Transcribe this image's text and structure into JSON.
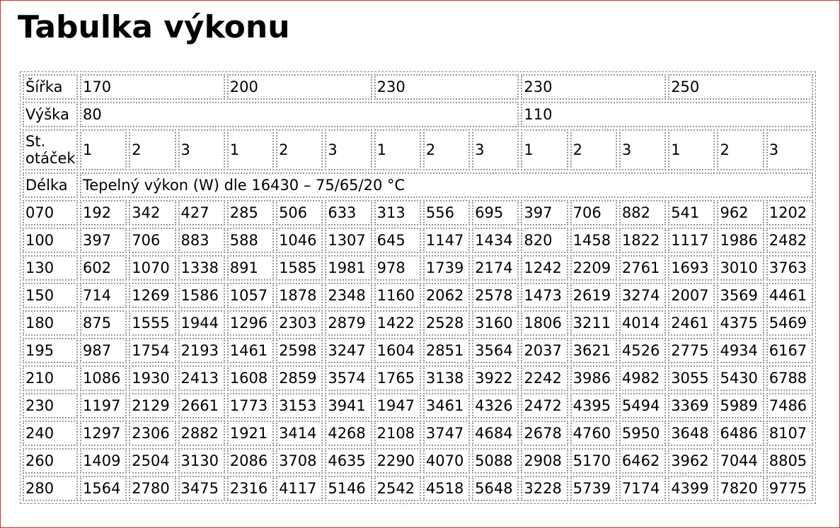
{
  "header": {
    "title": "Tabulka výkonu"
  },
  "table": {
    "rows": [
      [
        "Šířka",
        "170",
        "200",
        "230",
        "230",
        "250"
      ],
      [
        "Výška",
        "80",
        "110"
      ],
      [
        "St. otáček",
        1,
        2,
        3,
        1,
        2,
        3,
        1,
        2,
        3,
        1,
        2,
        3,
        1,
        2,
        3
      ],
      [
        "Délka",
        "Tepelný výkon (W) dle 16430 – 75/65/20 °C"
      ],
      [
        "070",
        192,
        342,
        427,
        285,
        506,
        633,
        313,
        556,
        695,
        397,
        706,
        882,
        541,
        962,
        1202
      ],
      [
        "100",
        397,
        706,
        883,
        588,
        1046,
        1307,
        645,
        1147,
        1434,
        820,
        1458,
        1822,
        1117,
        1986,
        2482
      ],
      [
        "130",
        602,
        1070,
        1338,
        891,
        1585,
        1981,
        978,
        1739,
        2174,
        1242,
        2209,
        2761,
        1693,
        3010,
        3763
      ],
      [
        "150",
        714,
        1269,
        1586,
        1057,
        1878,
        2348,
        1160,
        2062,
        2578,
        1473,
        2619,
        3274,
        2007,
        3569,
        4461
      ],
      [
        "180",
        875,
        1555,
        1944,
        1296,
        2303,
        2879,
        1422,
        2528,
        3160,
        1806,
        3211,
        4014,
        2461,
        4375,
        5469
      ],
      [
        "195",
        987,
        1754,
        2193,
        1461,
        2598,
        3247,
        1604,
        2851,
        3564,
        2037,
        3621,
        4526,
        2775,
        4934,
        6167
      ],
      [
        "210",
        1086,
        1930,
        2413,
        1608,
        2859,
        3574,
        1765,
        3138,
        3922,
        2242,
        3986,
        4982,
        3055,
        5430,
        6788
      ],
      [
        "230",
        1197,
        2129,
        2661,
        1773,
        3153,
        3941,
        1947,
        3461,
        4326,
        2472,
        4395,
        5494,
        3369,
        5989,
        7486
      ],
      [
        "240",
        1297,
        2306,
        2882,
        1921,
        3414,
        4268,
        2108,
        3747,
        4684,
        2678,
        4760,
        5950,
        3648,
        6486,
        8107
      ],
      [
        "260",
        1409,
        2504,
        3130,
        2086,
        3708,
        4635,
        2290,
        4070,
        5088,
        2908,
        5170,
        6462,
        3962,
        7044,
        8805
      ],
      [
        "280",
        1564,
        2780,
        3475,
        2316,
        4117,
        5146,
        2542,
        4518,
        5648,
        3228,
        5739,
        7174,
        4399,
        7820,
        9775
      ]
    ]
  }
}
